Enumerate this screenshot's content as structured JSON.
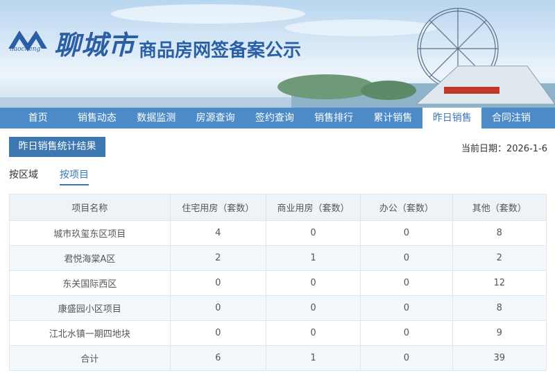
{
  "header": {
    "logo_pinyin": "liaocheng",
    "city": "聊城市",
    "title": "商品房网签备案公示"
  },
  "nav": {
    "items": [
      "首页",
      "销售动态",
      "数据监测",
      "房源查询",
      "签约查询",
      "销售排行",
      "累计销售",
      "昨日销售",
      "合同注销"
    ],
    "active": 7
  },
  "toolbar": {
    "button": "昨日销售统计结果",
    "date": "当前日期：2026-1-6"
  },
  "tabs": {
    "items": [
      "按区域",
      "按项目"
    ],
    "active": 1
  },
  "table": {
    "columns": [
      "项目名称",
      "住宅用房（套数）",
      "商业用房（套数）",
      "办公（套数）",
      "其他（套数）"
    ],
    "rows": [
      [
        "城市玖玺东区项目",
        4,
        0,
        0,
        8
      ],
      [
        "君悦海棠A区",
        2,
        1,
        0,
        2
      ],
      [
        "东关国际西区",
        0,
        0,
        0,
        12
      ],
      [
        "康盛园小区项目",
        0,
        0,
        0,
        8
      ],
      [
        "江北水镇一期四地块",
        0,
        0,
        0,
        9
      ],
      [
        "合计",
        6,
        1,
        0,
        39
      ]
    ]
  }
}
